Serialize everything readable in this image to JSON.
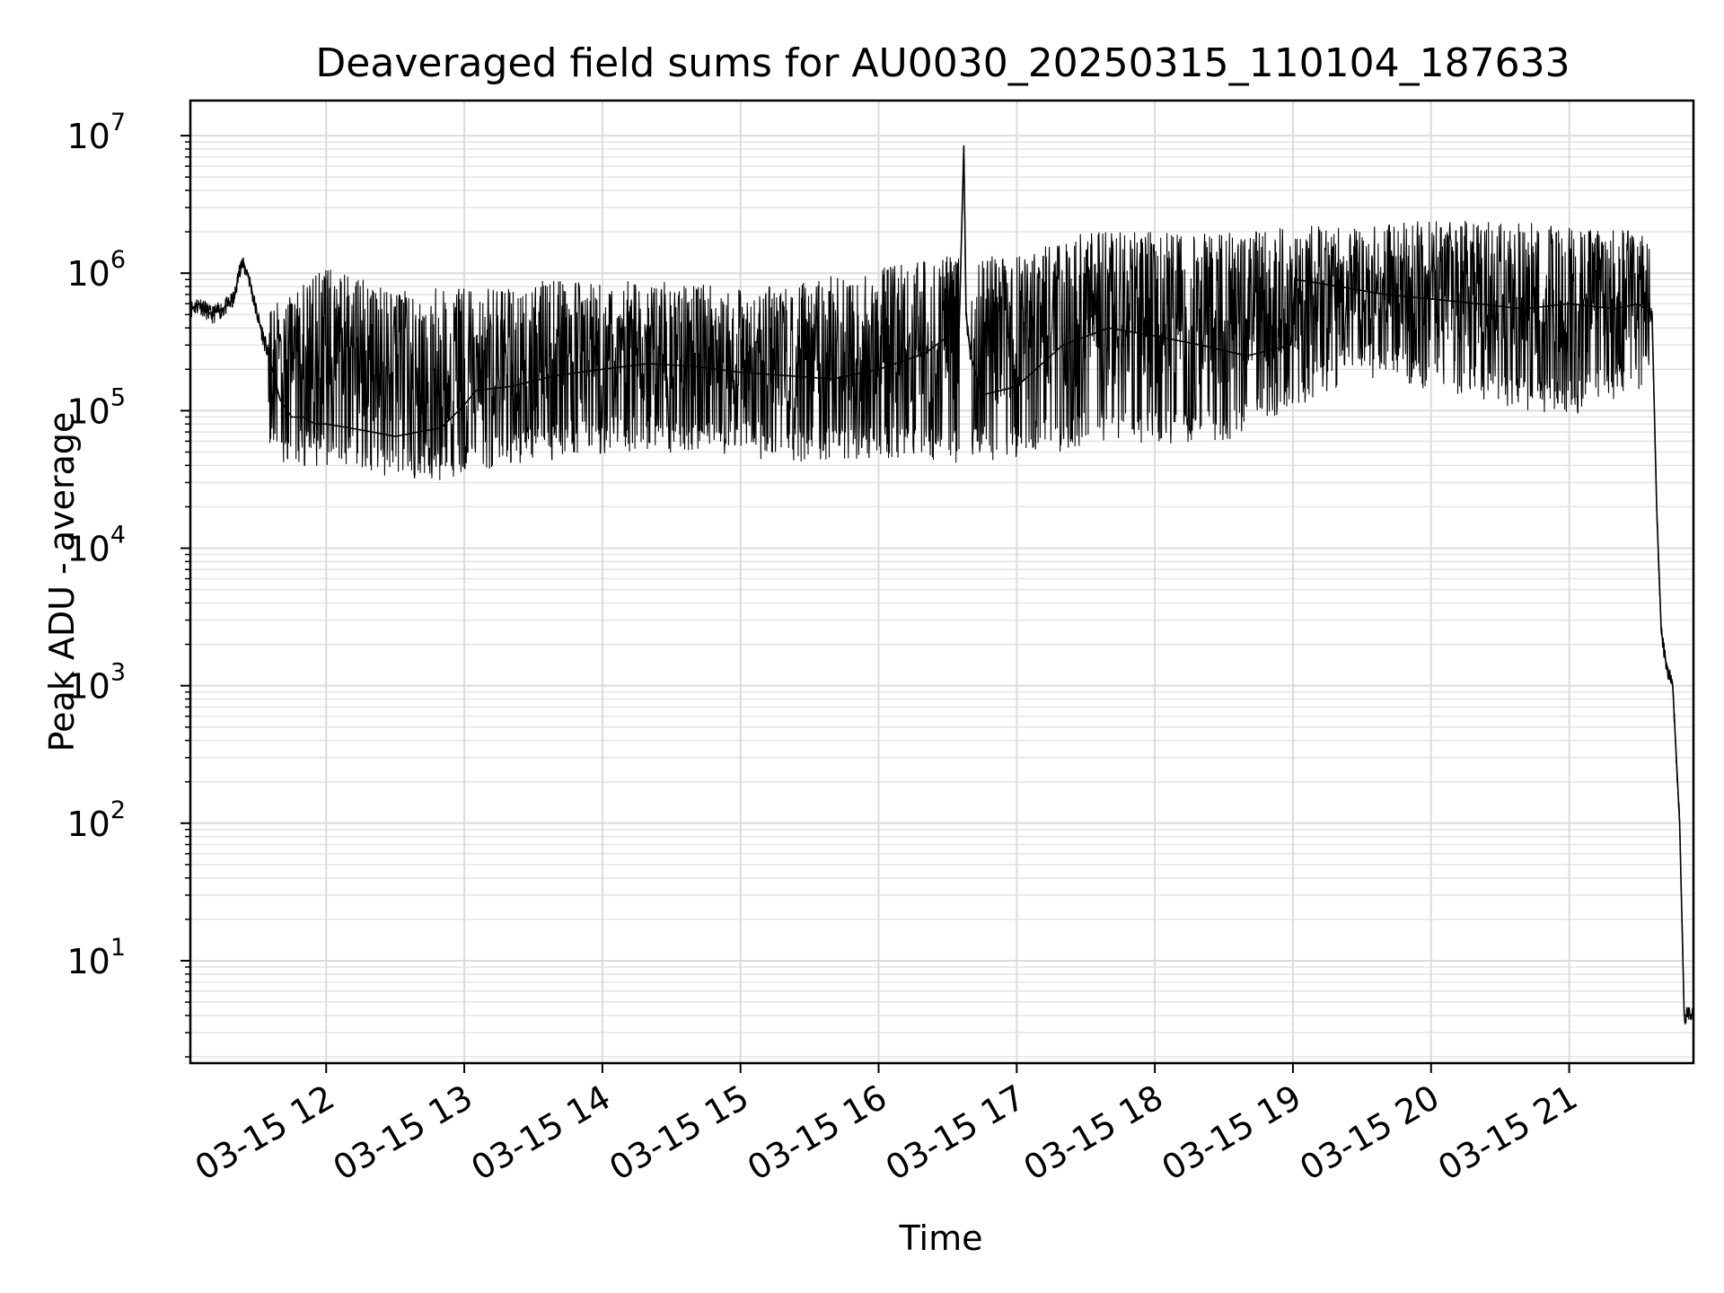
{
  "chart_data": {
    "type": "line",
    "title": "Deaveraged field sums for AU0030_20250315_110104_187633",
    "xlabel": "Time",
    "ylabel": "Peak ADU - average",
    "yscale": "log",
    "ylim": [
      1.8,
      18000000
    ],
    "xlim": [
      "2025-03-15 11:01",
      "2025-03-15 21:54"
    ],
    "grid": true,
    "grid_minor": true,
    "line_color": "#000000",
    "x_ticks": [
      {
        "value": "2025-03-15 12:00",
        "label": "03-15 12"
      },
      {
        "value": "2025-03-15 13:00",
        "label": "03-15 13"
      },
      {
        "value": "2025-03-15 14:00",
        "label": "03-15 14"
      },
      {
        "value": "2025-03-15 15:00",
        "label": "03-15 15"
      },
      {
        "value": "2025-03-15 16:00",
        "label": "03-15 16"
      },
      {
        "value": "2025-03-15 17:00",
        "label": "03-15 17"
      },
      {
        "value": "2025-03-15 18:00",
        "label": "03-15 18"
      },
      {
        "value": "2025-03-15 19:00",
        "label": "03-15 19"
      },
      {
        "value": "2025-03-15 20:00",
        "label": "03-15 20"
      },
      {
        "value": "2025-03-15 21:00",
        "label": "03-15 21"
      }
    ],
    "y_ticks": [
      {
        "value": 10,
        "exp": "1"
      },
      {
        "value": 100,
        "exp": "2"
      },
      {
        "value": 1000,
        "exp": "3"
      },
      {
        "value": 10000,
        "exp": "4"
      },
      {
        "value": 100000,
        "exp": "5"
      },
      {
        "value": 1000000,
        "exp": "6"
      },
      {
        "value": 10000000,
        "exp": "7"
      }
    ],
    "y_tick_base": "10",
    "series": [
      {
        "x": [
          "2025-03-15 11:01",
          "2025-03-15 11:05",
          "2025-03-15 11:10",
          "2025-03-15 11:15",
          "2025-03-15 11:20",
          "2025-03-15 11:23",
          "2025-03-15 11:26",
          "2025-03-15 11:30",
          "2025-03-15 11:35",
          "2025-03-15 11:40",
          "2025-03-15 11:45",
          "2025-03-15 11:50",
          "2025-03-15 11:55",
          "2025-03-15 12:00",
          "2025-03-15 12:10",
          "2025-03-15 12:20",
          "2025-03-15 12:30",
          "2025-03-15 12:40",
          "2025-03-15 12:50",
          "2025-03-15 13:00",
          "2025-03-15 13:05",
          "2025-03-15 13:20",
          "2025-03-15 13:40",
          "2025-03-15 14:00",
          "2025-03-15 14:20",
          "2025-03-15 14:40",
          "2025-03-15 15:00",
          "2025-03-15 15:20",
          "2025-03-15 15:40",
          "2025-03-15 16:00",
          "2025-03-15 16:20",
          "2025-03-15 16:35",
          "2025-03-15 16:37",
          "2025-03-15 16:38",
          "2025-03-15 16:40",
          "2025-03-15 16:45",
          "2025-03-15 17:00",
          "2025-03-15 17:20",
          "2025-03-15 17:40",
          "2025-03-15 18:00",
          "2025-03-15 18:20",
          "2025-03-15 18:40",
          "2025-03-15 18:59",
          "2025-03-15 19:01",
          "2025-03-15 19:20",
          "2025-03-15 19:40",
          "2025-03-15 20:00",
          "2025-03-15 20:20",
          "2025-03-15 20:40",
          "2025-03-15 21:00",
          "2025-03-15 21:20",
          "2025-03-15 21:30",
          "2025-03-15 21:36",
          "2025-03-15 21:38",
          "2025-03-15 21:40",
          "2025-03-15 21:42",
          "2025-03-15 21:45",
          "2025-03-15 21:48",
          "2025-03-15 21:50",
          "2025-03-15 21:51",
          "2025-03-15 21:54"
        ],
        "y": [
          550000,
          600000,
          500000,
          550000,
          650000,
          1200000,
          1000000,
          500000,
          250000,
          120000,
          90000,
          90000,
          80000,
          80000,
          75000,
          70000,
          65000,
          70000,
          75000,
          110000,
          140000,
          150000,
          180000,
          200000,
          220000,
          210000,
          190000,
          180000,
          170000,
          200000,
          260000,
          400000,
          8500000,
          500000,
          250000,
          130000,
          150000,
          300000,
          400000,
          350000,
          300000,
          250000,
          300000,
          900000,
          800000,
          700000,
          650000,
          600000,
          550000,
          600000,
          550000,
          600000,
          500000,
          20000,
          2500,
          1500,
          1000,
          100,
          4,
          4,
          4
        ]
      }
    ],
    "fluctuation_band": {
      "x": [
        "2025-03-15 11:35",
        "2025-03-15 12:00",
        "2025-03-15 12:30",
        "2025-03-15 13:00",
        "2025-03-15 13:30",
        "2025-03-15 14:00",
        "2025-03-15 14:30",
        "2025-03-15 15:00",
        "2025-03-15 15:30",
        "2025-03-15 16:00",
        "2025-03-15 16:30",
        "2025-03-15 17:00",
        "2025-03-15 17:30",
        "2025-03-15 18:00",
        "2025-03-15 18:30",
        "2025-03-15 19:00",
        "2025-03-15 19:30",
        "2025-03-15 20:00",
        "2025-03-15 20:30",
        "2025-03-15 21:00",
        "2025-03-15 21:35"
      ],
      "low": [
        60000,
        55000,
        45000,
        45000,
        60000,
        70000,
        70000,
        65000,
        60000,
        65000,
        60000,
        60000,
        80000,
        80000,
        80000,
        150000,
        250000,
        200000,
        150000,
        130000,
        200000
      ],
      "high": [
        500000,
        1000000,
        700000,
        700000,
        800000,
        800000,
        800000,
        700000,
        800000,
        1000000,
        1200000,
        1200000,
        1800000,
        1800000,
        1800000,
        2000000,
        2000000,
        2200000,
        2200000,
        2000000,
        1800000
      ]
    }
  }
}
